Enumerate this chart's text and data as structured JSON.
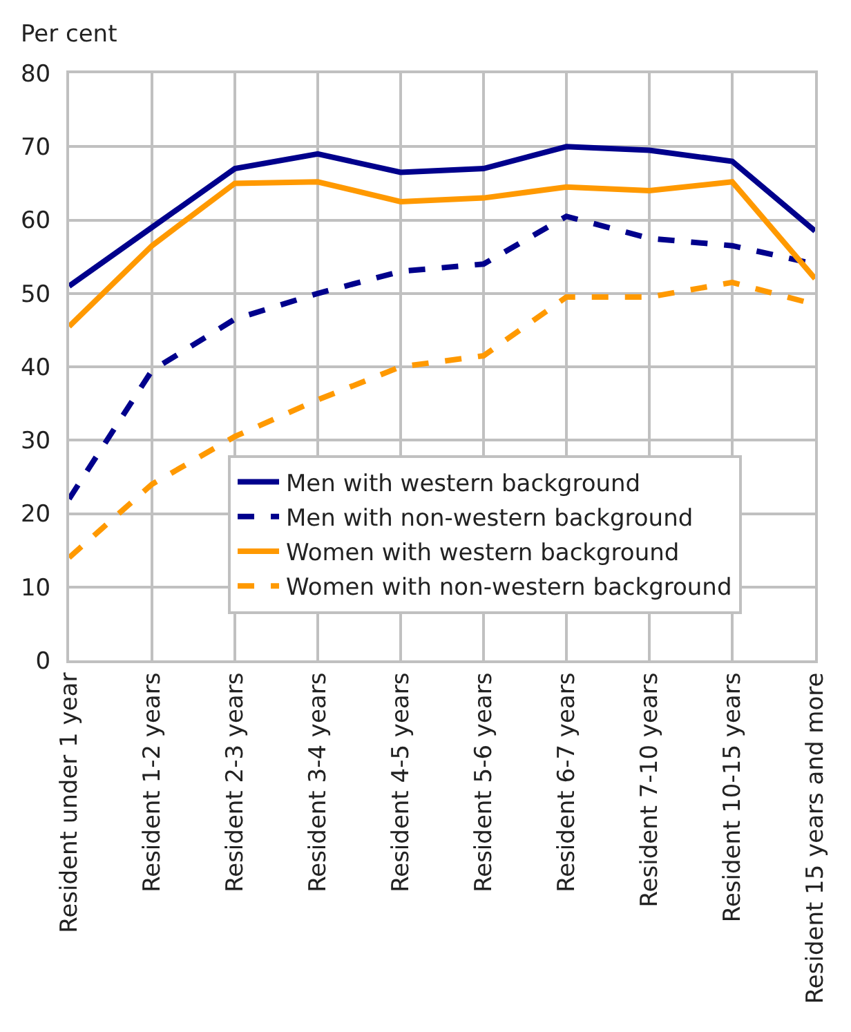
{
  "chart_data": {
    "type": "line",
    "ylabel": "Per cent",
    "categories": [
      "Resident under 1 year",
      "Resident 1-2 years",
      "Resident 2-3 years",
      "Resident 3-4 years",
      "Resident 4-5 years",
      "Resident 5-6 years",
      "Resident 6-7 years",
      "Resident 7-10 years",
      "Resident 10-15 years",
      "Resident 15 years and more"
    ],
    "series": [
      {
        "name": "Men with western background",
        "color": "#00008c",
        "line_style": "solid",
        "values": [
          51,
          59,
          67,
          69,
          66.5,
          67,
          70,
          69.5,
          68,
          58.5
        ]
      },
      {
        "name": "Men with non-western background",
        "color": "#00008c",
        "line_style": "dashed",
        "values": [
          22,
          39.5,
          46.5,
          50,
          53,
          54,
          60.5,
          57.5,
          56.5,
          54
        ]
      },
      {
        "name": "Women with western background",
        "color": "#ff9900",
        "line_style": "solid",
        "values": [
          45.5,
          56.5,
          65,
          65.2,
          62.5,
          63,
          64.5,
          64,
          65.2,
          52
        ]
      },
      {
        "name": "Women with non-western background",
        "color": "#ff9900",
        "line_style": "dashed",
        "values": [
          14,
          24,
          30.5,
          35.5,
          40,
          41.5,
          49.5,
          49.5,
          51.5,
          48.5
        ]
      }
    ],
    "ylim": [
      0,
      80
    ],
    "yticks": [
      0,
      10,
      20,
      30,
      40,
      50,
      60,
      70,
      80
    ],
    "grid": true,
    "legend": "bottom right",
    "marker": "none"
  }
}
